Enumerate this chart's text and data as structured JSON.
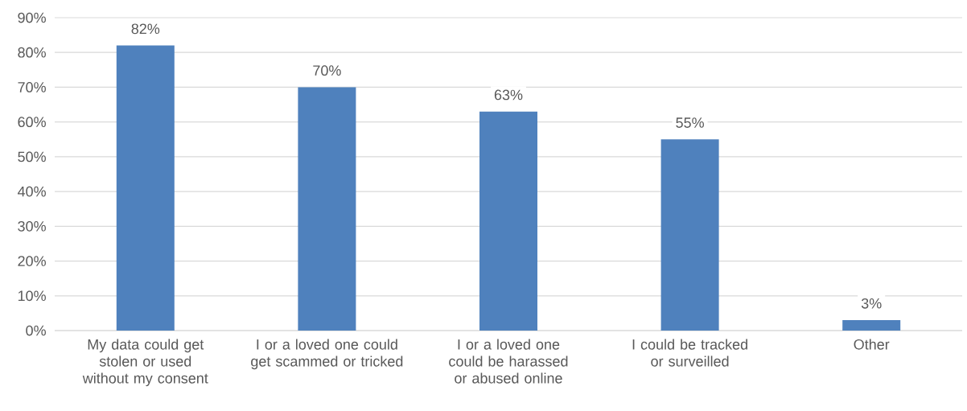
{
  "chart_data": {
    "type": "bar",
    "categories": [
      "My data could get stolen or used without my consent",
      "I or a loved one could get scammed or tricked",
      "I or a loved one could be harassed or abused online",
      "I could be tracked or surveilled",
      "Other"
    ],
    "values": [
      82,
      70,
      63,
      55,
      3
    ],
    "value_labels": [
      "82%",
      "70%",
      "63%",
      "55%",
      "3%"
    ],
    "color": "#4f81bd",
    "ylim": [
      0,
      90
    ],
    "yticks": [
      {
        "value": 0,
        "label": "0%"
      },
      {
        "value": 10,
        "label": "10%"
      },
      {
        "value": 20,
        "label": "20%"
      },
      {
        "value": 30,
        "label": "30%"
      },
      {
        "value": 40,
        "label": "40%"
      },
      {
        "value": 50,
        "label": "50%"
      },
      {
        "value": 60,
        "label": "60%"
      },
      {
        "value": 70,
        "label": "70%"
      },
      {
        "value": 80,
        "label": "80%"
      },
      {
        "value": 90,
        "label": "90%"
      }
    ],
    "grid": "y"
  }
}
